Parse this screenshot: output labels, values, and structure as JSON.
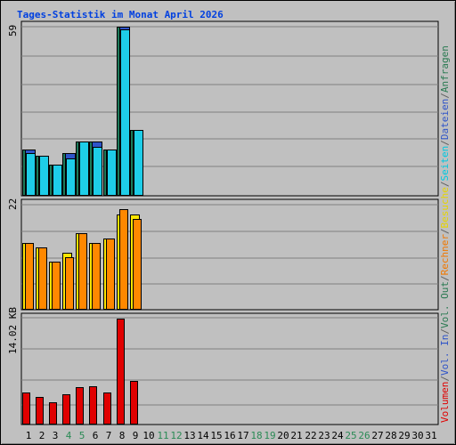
{
  "title": "Tages-Statistik im Monat April 2026",
  "panel_labels": {
    "top": "59",
    "middle": "22",
    "bottom": "14.02 KB"
  },
  "days": [
    "1",
    "2",
    "3",
    "4",
    "5",
    "6",
    "7",
    "8",
    "9",
    "10",
    "11",
    "12",
    "13",
    "14",
    "15",
    "16",
    "17",
    "18",
    "19",
    "20",
    "21",
    "22",
    "23",
    "24",
    "25",
    "26",
    "27",
    "28",
    "29",
    "30",
    "31"
  ],
  "weekend_days": [
    4,
    5,
    11,
    12,
    18,
    19,
    25,
    26
  ],
  "legend_right": [
    {
      "text": "Volumen",
      "color": "#e00000"
    },
    {
      "text": "/",
      "color": "#606060"
    },
    {
      "text": "Vol. In",
      "color": "#2f54c8"
    },
    {
      "text": "/",
      "color": "#606060"
    },
    {
      "text": "Vol. Out",
      "color": "#2a7a52"
    },
    {
      "text": "/",
      "color": "#606060"
    },
    {
      "text": "Rechner",
      "color": "#f07800"
    },
    {
      "text": "/",
      "color": "#606060"
    },
    {
      "text": "Besuche",
      "color": "#e6d400"
    },
    {
      "text": "/",
      "color": "#606060"
    },
    {
      "text": "Seiten",
      "color": "#00c8e0"
    },
    {
      "text": "/",
      "color": "#606060"
    },
    {
      "text": "Dateien",
      "color": "#2f54c8"
    },
    {
      "text": "/",
      "color": "#606060"
    },
    {
      "text": "Anfragen",
      "color": "#2a7a52"
    }
  ],
  "colors": {
    "background": "#c0c0c0",
    "title": "#0040e0",
    "gridline": "#808080",
    "weekend_day": "#2a8a55",
    "requests": "#1d7a5a",
    "files": "#2f54c8",
    "pages": "#1ecde8",
    "visits": "#ffe600",
    "hosts": "#ff8800",
    "volume": "#e00000"
  },
  "chart_data": [
    {
      "type": "bar",
      "panel": "top",
      "categories": [
        "1",
        "2",
        "3",
        "4",
        "5",
        "6",
        "7",
        "8",
        "9"
      ],
      "series": [
        {
          "name": "Anfragen",
          "values": [
            16,
            14,
            11,
            15,
            19,
            19,
            16,
            59,
            23
          ]
        },
        {
          "name": "Dateien",
          "values": [
            16,
            14,
            11,
            15,
            19,
            19,
            16,
            59,
            23
          ]
        },
        {
          "name": "Seiten",
          "values": [
            15,
            14,
            11,
            13,
            19,
            17,
            16,
            58,
            23
          ]
        }
      ],
      "ylim": [
        0,
        59
      ]
    },
    {
      "type": "bar",
      "panel": "middle",
      "categories": [
        "1",
        "2",
        "3",
        "4",
        "5",
        "6",
        "7",
        "8",
        "9"
      ],
      "series": [
        {
          "name": "Besuche",
          "values": [
            14,
            13,
            10,
            12,
            16,
            14,
            15,
            20,
            20
          ]
        },
        {
          "name": "Rechner",
          "values": [
            14,
            13,
            10,
            11,
            16,
            14,
            15,
            21,
            19
          ]
        }
      ],
      "ylim": [
        0,
        22
      ]
    },
    {
      "type": "bar",
      "panel": "bottom",
      "categories": [
        "1",
        "2",
        "3",
        "4",
        "5",
        "6",
        "7",
        "8",
        "9"
      ],
      "series": [
        {
          "name": "Volumen",
          "values": [
            4.3,
            3.6,
            2.9,
            4.0,
            4.9,
            5.1,
            4.2,
            14.02,
            5.8
          ]
        }
      ],
      "ylim": [
        0,
        14.02
      ],
      "unit": "KB"
    }
  ]
}
